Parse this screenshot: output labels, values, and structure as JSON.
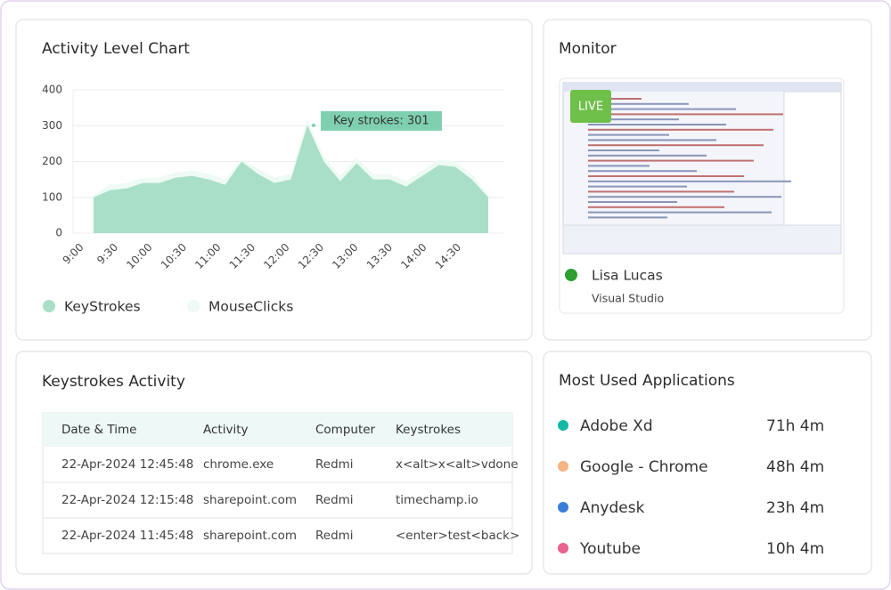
{
  "activity_chart": {
    "title": "Activity Level Chart",
    "type": "area",
    "xticks": [
      "9:00",
      "9:30",
      "10:00",
      "10:30",
      "11:00",
      "11:30",
      "12:00",
      "12:30",
      "13:00",
      "13:30",
      "14:00",
      "14:30"
    ],
    "ylim": [
      0,
      400
    ],
    "yticks": [
      0,
      100,
      200,
      300,
      400
    ],
    "grid": true,
    "series": [
      {
        "name": "MouseClicks",
        "color": "#eefaf4",
        "values": [
          105,
          135,
          140,
          155,
          155,
          170,
          175,
          165,
          150,
          205,
          180,
          155,
          165,
          315,
          215,
          160,
          210,
          165,
          165,
          145,
          175,
          205,
          200,
          165,
          105
        ]
      },
      {
        "name": "KeyStrokes",
        "color": "#a9dfc7",
        "values": [
          100,
          120,
          125,
          140,
          140,
          155,
          160,
          150,
          135,
          200,
          165,
          140,
          150,
          301,
          200,
          145,
          195,
          150,
          150,
          130,
          160,
          190,
          185,
          150,
          100
        ]
      }
    ],
    "annotation": "Key strokes: 301"
  },
  "monitor": {
    "title": "Monitor",
    "badge": "LIVE",
    "user": "Lisa Lucas",
    "application": "Visual Studio"
  },
  "keystrokes": {
    "title": "Keystrokes Activity",
    "table": {
      "header": [
        "Date & Time",
        "Activity",
        "Computer",
        "Keystrokes"
      ],
      "rows": [
        [
          "22-Apr-2024 12:45:48",
          "chrome.exe",
          "Redmi",
          "x<alt>x<alt>vdone"
        ],
        [
          "22-Apr-2024 12:15:48",
          "sharepoint.com",
          "Redmi",
          "timechamp.io"
        ],
        [
          "22-Apr-2024 11:45:48",
          "sharepoint.com",
          "Redmi",
          "<enter>test<back>"
        ]
      ]
    }
  },
  "apps": {
    "title": "Most Used Applications",
    "items": [
      {
        "name": "Adobe Xd",
        "time": "71h 4m",
        "color": "#14b8a6"
      },
      {
        "name": "Google - Chrome",
        "time": "48h 4m",
        "color": "#f6b483"
      },
      {
        "name": "Anydesk",
        "time": "23h 4m",
        "color": "#3b7dd8"
      },
      {
        "name": "Youtube",
        "time": "10h 4m",
        "color": "#e8638f"
      }
    ]
  }
}
